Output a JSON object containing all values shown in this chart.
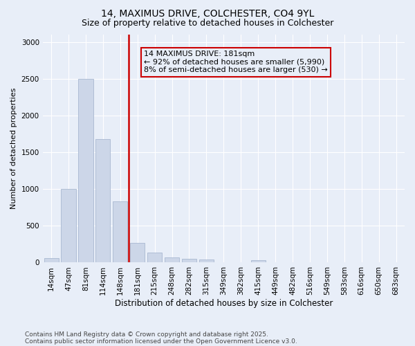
{
  "title_line1": "14, MAXIMUS DRIVE, COLCHESTER, CO4 9YL",
  "title_line2": "Size of property relative to detached houses in Colchester",
  "xlabel": "Distribution of detached houses by size in Colchester",
  "ylabel": "Number of detached properties",
  "footnote1": "Contains HM Land Registry data © Crown copyright and database right 2025.",
  "footnote2": "Contains public sector information licensed under the Open Government Licence v3.0.",
  "annotation_line1": "14 MAXIMUS DRIVE: 181sqm",
  "annotation_line2": "← 92% of detached houses are smaller (5,990)",
  "annotation_line3": "8% of semi-detached houses are larger (530) →",
  "bar_color": "#ccd6e8",
  "bar_edgecolor": "#a8b8d0",
  "property_line_color": "#cc0000",
  "annotation_box_edgecolor": "#cc0000",
  "background_color": "#e8eef8",
  "grid_color": "#ffffff",
  "categories": [
    "14sqm",
    "47sqm",
    "81sqm",
    "114sqm",
    "148sqm",
    "181sqm",
    "215sqm",
    "248sqm",
    "282sqm",
    "315sqm",
    "349sqm",
    "382sqm",
    "415sqm",
    "449sqm",
    "482sqm",
    "516sqm",
    "549sqm",
    "583sqm",
    "616sqm",
    "650sqm",
    "683sqm"
  ],
  "values": [
    60,
    1000,
    2500,
    1680,
    830,
    270,
    140,
    70,
    55,
    40,
    0,
    0,
    30,
    0,
    0,
    0,
    0,
    0,
    0,
    0,
    0
  ],
  "ylim": [
    0,
    3100
  ],
  "yticks": [
    0,
    500,
    1000,
    1500,
    2000,
    2500,
    3000
  ],
  "prop_bar_index": 5,
  "title1_fontsize": 10,
  "title2_fontsize": 9,
  "tick_fontsize": 7.5,
  "ylabel_fontsize": 8,
  "xlabel_fontsize": 8.5,
  "footnote_fontsize": 6.5,
  "annotation_fontsize": 8
}
